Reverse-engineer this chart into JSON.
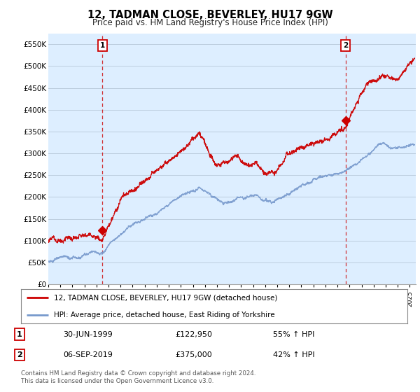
{
  "title": "12, TADMAN CLOSE, BEVERLEY, HU17 9GW",
  "subtitle": "Price paid vs. HM Land Registry's House Price Index (HPI)",
  "ylim": [
    0,
    575000
  ],
  "yticks": [
    0,
    50000,
    100000,
    150000,
    200000,
    250000,
    300000,
    350000,
    400000,
    450000,
    500000,
    550000
  ],
  "xlim_start": 1995.0,
  "xlim_end": 2025.5,
  "sale1_x": 1999.5,
  "sale1_y": 122950,
  "sale2_x": 2019.67,
  "sale2_y": 375000,
  "sale1_label": "1",
  "sale2_label": "2",
  "sale1_date": "30-JUN-1999",
  "sale1_price": "£122,950",
  "sale1_hpi": "55% ↑ HPI",
  "sale2_date": "06-SEP-2019",
  "sale2_price": "£375,000",
  "sale2_hpi": "42% ↑ HPI",
  "line1_color": "#cc0000",
  "line2_color": "#7799cc",
  "dashed_color": "#cc0000",
  "bg_color": "#ddeeff",
  "background_color": "#ffffff",
  "grid_color": "#bbccdd",
  "legend1_label": "12, TADMAN CLOSE, BEVERLEY, HU17 9GW (detached house)",
  "legend2_label": "HPI: Average price, detached house, East Riding of Yorkshire",
  "footer": "Contains HM Land Registry data © Crown copyright and database right 2024.\nThis data is licensed under the Open Government Licence v3.0."
}
